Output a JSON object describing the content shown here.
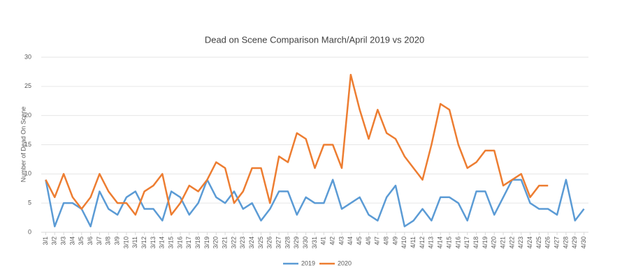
{
  "chart_data": {
    "type": "line",
    "title": "Dead on Scene Comparison March/April 2019 vs 2020",
    "y_label": "Number of Dead On Scene",
    "categories": [
      "3/1",
      "3/2",
      "3/3",
      "3/4",
      "3/5",
      "3/6",
      "3/7",
      "3/8",
      "3/9",
      "3/10",
      "3/11",
      "3/12",
      "3/13",
      "3/14",
      "3/15",
      "3/16",
      "3/17",
      "3/18",
      "3/19",
      "3/20",
      "3/21",
      "3/22",
      "3/23",
      "3/24",
      "3/25",
      "3/26",
      "3/27",
      "3/28",
      "3/29",
      "3/30",
      "3/31",
      "4/1",
      "4/2",
      "4/3",
      "4/4",
      "4/5",
      "4/6",
      "4/7",
      "4/8",
      "4/9",
      "4/10",
      "4/11",
      "4/12",
      "4/13",
      "4/14",
      "4/15",
      "4/16",
      "4/17",
      "4/18",
      "4/19",
      "4/20",
      "4/21",
      "4/22",
      "4/23",
      "4/24",
      "4/25",
      "4/26",
      "4/27",
      "4/28",
      "4/29",
      "4/30"
    ],
    "series": [
      {
        "name": "2019",
        "color": "#5b9bd5",
        "values": [
          9,
          1,
          5,
          5,
          4,
          1,
          7,
          4,
          3,
          6,
          7,
          4,
          4,
          2,
          7,
          6,
          3,
          5,
          9,
          6,
          5,
          7,
          4,
          5,
          2,
          4,
          7,
          7,
          3,
          6,
          5,
          5,
          9,
          4,
          5,
          6,
          3,
          2,
          6,
          8,
          1,
          2,
          4,
          2,
          6,
          6,
          5,
          2,
          7,
          7,
          3,
          6,
          9,
          9,
          5,
          4,
          4,
          3,
          9,
          2,
          4
        ]
      },
      {
        "name": "2020",
        "color": "#ed7d31",
        "values": [
          9,
          6,
          10,
          6,
          4,
          6,
          10,
          7,
          5,
          5,
          3,
          7,
          8,
          10,
          3,
          5,
          8,
          7,
          9,
          12,
          11,
          5,
          7,
          11,
          11,
          5,
          13,
          12,
          17,
          16,
          11,
          15,
          15,
          11,
          27,
          21,
          16,
          21,
          17,
          16,
          13,
          11,
          9,
          15,
          22,
          21,
          15,
          11,
          12,
          14,
          14,
          8,
          9,
          10,
          6,
          8,
          8,
          null,
          null,
          null,
          null
        ]
      }
    ],
    "ylim": [
      0,
      30
    ],
    "yticks": [
      0,
      5,
      10,
      15,
      20,
      25,
      30
    ],
    "grid": true,
    "legend": "bottom"
  }
}
